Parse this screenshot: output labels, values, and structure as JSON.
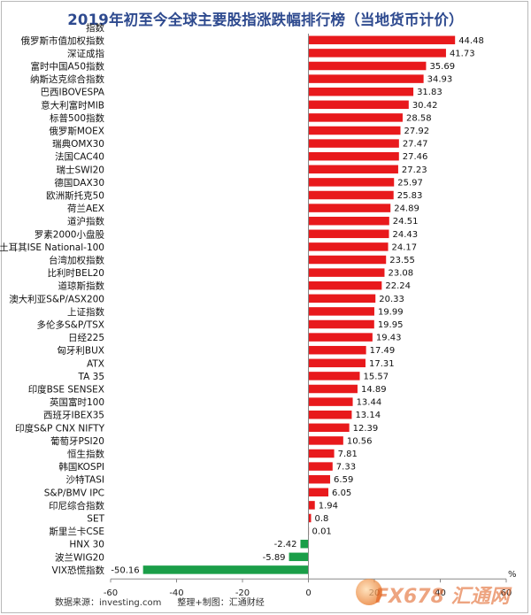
{
  "chart_data": {
    "type": "bar",
    "orientation": "horizontal",
    "title": "2019年初至今全球主要股指涨跌幅排行榜（当地货币计价）",
    "category_header": "指数",
    "xlabel": "%",
    "xlim": [
      -60,
      60
    ],
    "xticks": [
      -60,
      -40,
      -20,
      0,
      20,
      40,
      60
    ],
    "grid": false,
    "positive_color": "#e8191c",
    "negative_color": "#1a9e48",
    "categories": [
      "俄罗斯市值加权指数",
      "深证成指",
      "富时中国A50指数",
      "纳斯达克综合指数",
      "巴西IBOVESPA",
      "意大利富时MIB",
      "标普500指数",
      "俄罗斯MOEX",
      "瑞典OMX30",
      "法国CAC40",
      "瑞士SWI20",
      "德国DAX30",
      "欧洲斯托克50",
      "荷兰AEX",
      "道沪指数",
      "罗素2000小盘股",
      "土耳其ISE National-100",
      "台湾加权指数",
      "比利时BEL20",
      "道琼斯指数",
      "澳大利亚S&P/ASX200",
      "上证指数",
      "多伦多S&P/TSX",
      "日经225",
      "匈牙利BUX",
      "ATX",
      "TA 35",
      "印度BSE SENSEX",
      "英国富时100",
      "西班牙IBEX35",
      "印度S&P CNX NIFTY",
      "葡萄牙PSI20",
      "恒生指数",
      "韩国KOSPI",
      "沙特TASI",
      "S&P/BMV IPC",
      "印尼综合指数",
      "SET",
      "斯里兰卡CSE",
      "HNX 30",
      "波兰WIG20",
      "VIX恐慌指数"
    ],
    "values": [
      44.48,
      41.73,
      35.69,
      34.93,
      31.83,
      30.42,
      28.58,
      27.92,
      27.47,
      27.46,
      27.23,
      25.97,
      25.83,
      24.89,
      24.51,
      24.43,
      24.17,
      23.55,
      23.08,
      22.24,
      20.33,
      19.99,
      19.95,
      19.43,
      17.49,
      17.31,
      15.57,
      14.89,
      13.44,
      13.14,
      12.39,
      10.56,
      7.81,
      7.33,
      6.59,
      6.05,
      1.94,
      0.8,
      0.01,
      -2.42,
      -5.89,
      -50.16
    ],
    "value_labels": [
      "44.48",
      "41.73",
      "35.69",
      "34.93",
      "31.83",
      "30.42",
      "28.58",
      "27.92",
      "27.47",
      "27.46",
      "27.23",
      "25.97",
      "25.83",
      "24.89",
      "24.51",
      "24.43",
      "24.17",
      "23.55",
      "23.08",
      "22.24",
      "20.33",
      "19.99",
      "19.95",
      "19.43",
      "17.49",
      "17.31",
      "15.57",
      "14.89",
      "13.44",
      "13.14",
      "12.39",
      "10.56",
      "7.81",
      "7.33",
      "6.59",
      "6.05",
      "1.94",
      "0.8",
      "0.01",
      "-2.42",
      "-5.89",
      "-50.16"
    ]
  },
  "footer": {
    "source": "数据来源：investing.com",
    "credit": "整理+制图：汇通财经"
  },
  "watermark": {
    "text": "FX678 汇通网"
  }
}
